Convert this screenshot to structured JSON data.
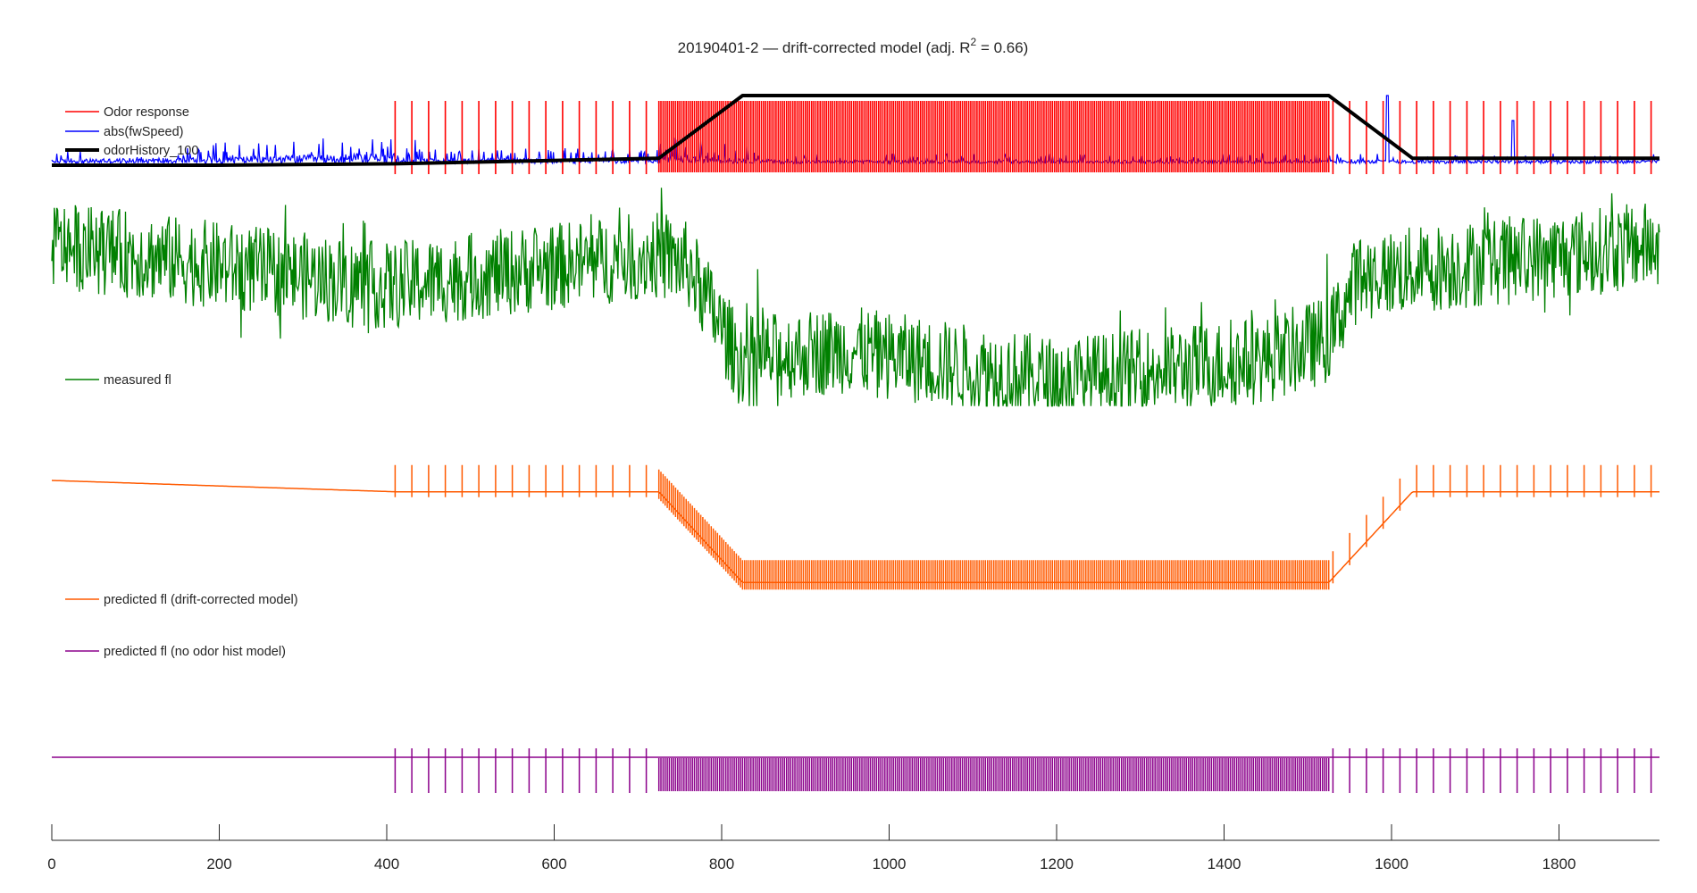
{
  "title": {
    "prefix": "20190401-2  —  drift-corrected model (adj. R",
    "sup": "2",
    "suffix": " = 0.66)"
  },
  "chart_data": {
    "type": "line",
    "x": {
      "ticks": [
        0,
        200,
        400,
        600,
        800,
        1000,
        1200,
        1400,
        1600,
        1800
      ],
      "lim": [
        0,
        1920
      ]
    },
    "odor_trials": {
      "sparse_phase_1": [
        410,
        430,
        450,
        470,
        490,
        510,
        530,
        550,
        570,
        590,
        610,
        630,
        650,
        670,
        690,
        710
      ],
      "dense_phase": [
        725,
        1525
      ],
      "dense_period": 2.5,
      "sparse_phase_2": [
        1530,
        1550,
        1570,
        1590,
        1610,
        1630,
        1650,
        1670,
        1690,
        1710,
        1730,
        1750,
        1770,
        1790,
        1810,
        1830,
        1850,
        1870,
        1890,
        1910
      ]
    },
    "panels": [
      {
        "id": "behavior",
        "series": [
          {
            "name": "Odor response",
            "color": "#ff0000"
          },
          {
            "name": "abs(fwSpeed)",
            "color": "#0000ff"
          },
          {
            "name": "odorHistory_100",
            "color": "#000000"
          }
        ],
        "odor_history": {
          "x": [
            0,
            195,
            410,
            725,
            825,
            1525,
            1625,
            1920
          ],
          "y": [
            0,
            0,
            0.02,
            0.1,
            1,
            1,
            0.1,
            0.1
          ]
        }
      },
      {
        "id": "measured",
        "series": [
          {
            "name": "measured fl",
            "color": "#008000"
          }
        ],
        "envelope": {
          "x": [
            0,
            400,
            720,
            760,
            820,
            950,
            1200,
            1450,
            1525,
            1560,
            1920
          ],
          "y": [
            0.75,
            0.55,
            0.7,
            0.65,
            0.2,
            0.25,
            0.1,
            0.2,
            0.3,
            0.6,
            0.75
          ]
        }
      },
      {
        "id": "predicted_drift",
        "series": [
          {
            "name": "predicted fl (drift-corrected model)",
            "color": "#ff5a00"
          }
        ],
        "baseline": {
          "x": [
            0,
            410,
            725,
            825,
            1525,
            1625,
            1920
          ],
          "y": [
            1,
            0.9,
            0.9,
            0.1,
            0.1,
            0.9,
            0.9
          ]
        }
      },
      {
        "id": "predicted_nohist",
        "series": [
          {
            "name": "predicted fl (no odor hist model)",
            "color": "#8b008b"
          }
        ]
      }
    ]
  }
}
